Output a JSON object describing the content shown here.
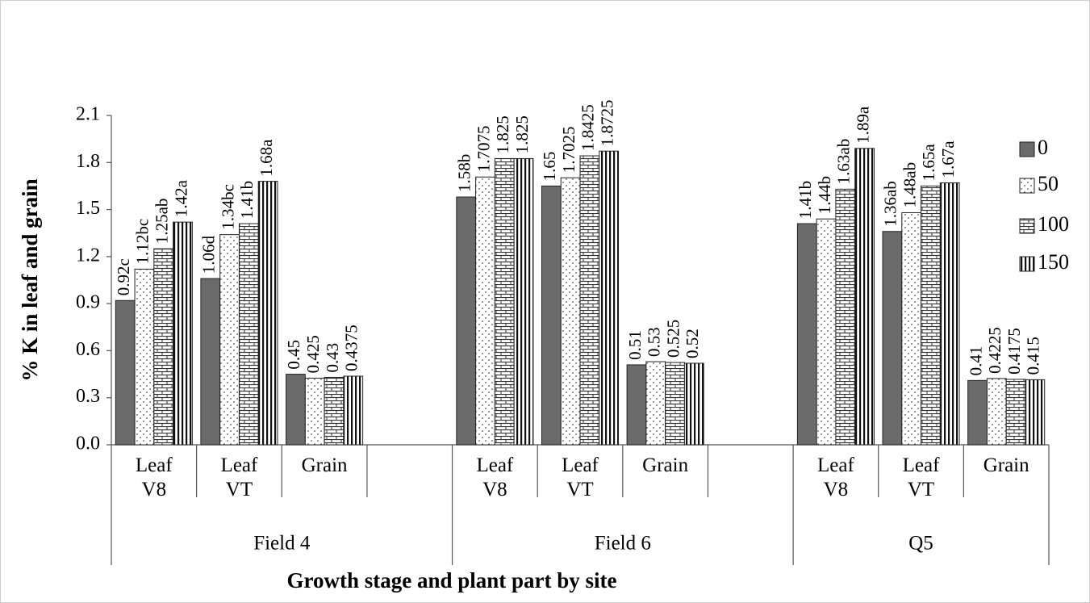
{
  "chart_data": {
    "type": "bar",
    "y_label": "% K in leaf and grain",
    "x_label": "Growth stage and plant part by site",
    "categories": [
      "Leaf V8",
      "Leaf VT",
      "Grain",
      null,
      "Leaf V8",
      "Leaf VT",
      "Grain",
      null,
      "Leaf V8",
      "Leaf VT",
      "Grain"
    ],
    "groups": [
      "Field 4",
      "Field 6",
      "Q5"
    ],
    "series": [
      {
        "name": "0",
        "color": "#6b6b6b",
        "pattern": "solid",
        "values": [
          0.92,
          1.06,
          0.45,
          null,
          1.58,
          1.65,
          0.51,
          null,
          1.41,
          1.36,
          0.41
        ],
        "value_labels": [
          "0.92c",
          "1.06d",
          "0.45",
          null,
          "1.58b",
          "1.65",
          "0.51",
          null,
          "1.41b",
          "1.36ab",
          "0.41"
        ]
      },
      {
        "name": "50",
        "color": "#ffffff",
        "pattern": "dots",
        "values": [
          1.12,
          1.34,
          0.425,
          null,
          1.7075,
          1.7025,
          0.53,
          null,
          1.44,
          1.48,
          0.4225
        ],
        "value_labels": [
          "1.12bc",
          "1.34bc",
          "0.425",
          null,
          "1.7075",
          "1.7025",
          "0.53",
          null,
          "1.44b",
          "1.48ab",
          "0.4225"
        ]
      },
      {
        "name": "100",
        "color": "#ffffff",
        "pattern": "bricks",
        "values": [
          1.25,
          1.41,
          0.43,
          null,
          1.825,
          1.8425,
          0.525,
          null,
          1.63,
          1.65,
          0.4175
        ],
        "value_labels": [
          "1.25ab",
          "1.41b",
          "0.43",
          null,
          "1.825",
          "1.8425",
          "0.525",
          null,
          "1.63ab",
          "1.65a",
          "0.4175"
        ]
      },
      {
        "name": "150",
        "color": "#ffffff",
        "pattern": "vlines",
        "values": [
          1.42,
          1.68,
          0.4375,
          null,
          1.825,
          1.8725,
          0.52,
          null,
          1.89,
          1.67,
          0.415
        ],
        "value_labels": [
          "1.42a",
          "1.68a",
          "0.4375",
          null,
          "1.825",
          "1.8725",
          "0.52",
          null,
          "1.89a",
          "1.67a",
          "0.415"
        ]
      }
    ],
    "ylim": [
      0,
      2.1
    ],
    "yticks": [
      {
        "value": 0,
        "label": "0.0"
      },
      0.3,
      0.6,
      0.9,
      1.2,
      1.5,
      1.8,
      2.1
    ],
    "legend": "right"
  }
}
